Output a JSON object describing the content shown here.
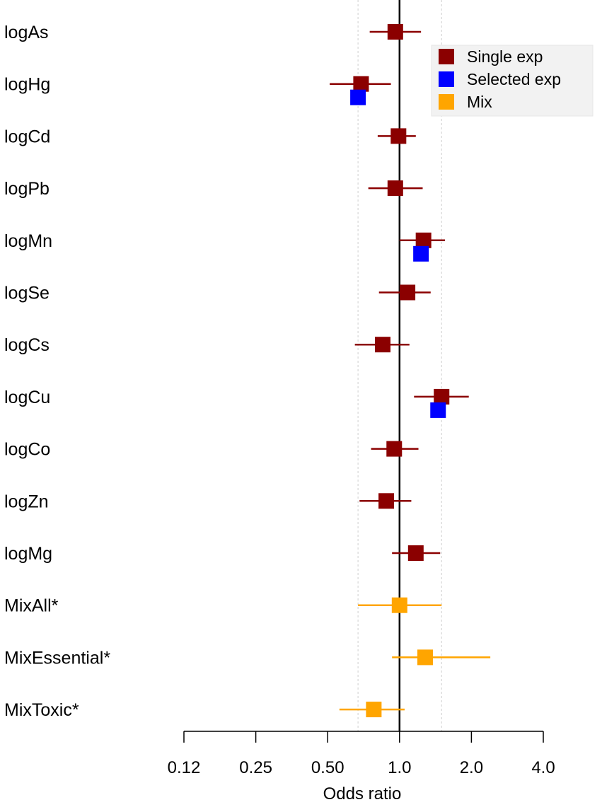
{
  "chart_data": {
    "type": "forest",
    "xlabel": "Odds ratio",
    "x_scale": "log2",
    "xlim": [
      0.125,
      4.0
    ],
    "ticks": [
      {
        "value": 0.125,
        "label": "0.12"
      },
      {
        "value": 0.25,
        "label": "0.25"
      },
      {
        "value": 0.5,
        "label": "0.50"
      },
      {
        "value": 1.0,
        "label": "1.0"
      },
      {
        "value": 2.0,
        "label": "2.0"
      },
      {
        "value": 4.0,
        "label": "4.0"
      }
    ],
    "reference_line": 1.0,
    "dashed_reference_lines": [
      0.67,
      1.5
    ],
    "legend": {
      "position": "top-right",
      "entries": [
        {
          "name": "Single exp",
          "color": "#8b0000"
        },
        {
          "name": "Selected exp",
          "color": "#0000ff"
        },
        {
          "name": "Mix",
          "color": "#ffa500"
        }
      ]
    },
    "rows": [
      {
        "label": "logAs",
        "estimates": [
          {
            "series": "Single exp",
            "or": 0.96,
            "lo": 0.75,
            "hi": 1.23
          }
        ]
      },
      {
        "label": "logHg",
        "estimates": [
          {
            "series": "Single exp",
            "or": 0.69,
            "lo": 0.51,
            "hi": 0.92
          },
          {
            "series": "Selected exp",
            "or": 0.67
          }
        ]
      },
      {
        "label": "logCd",
        "estimates": [
          {
            "series": "Single exp",
            "or": 0.99,
            "lo": 0.81,
            "hi": 1.17
          }
        ]
      },
      {
        "label": "logPb",
        "estimates": [
          {
            "series": "Single exp",
            "or": 0.96,
            "lo": 0.74,
            "hi": 1.25
          }
        ]
      },
      {
        "label": "logMn",
        "estimates": [
          {
            "series": "Single exp",
            "or": 1.26,
            "lo": 1.0,
            "hi": 1.55
          },
          {
            "series": "Selected exp",
            "or": 1.23
          }
        ]
      },
      {
        "label": "logSe",
        "estimates": [
          {
            "series": "Single exp",
            "or": 1.08,
            "lo": 0.82,
            "hi": 1.35
          }
        ]
      },
      {
        "label": "logCs",
        "estimates": [
          {
            "series": "Single exp",
            "or": 0.85,
            "lo": 0.65,
            "hi": 1.1
          }
        ]
      },
      {
        "label": "logCu",
        "estimates": [
          {
            "series": "Single exp",
            "or": 1.5,
            "lo": 1.15,
            "hi": 1.95
          },
          {
            "series": "Selected exp",
            "or": 1.45
          }
        ]
      },
      {
        "label": "logCo",
        "estimates": [
          {
            "series": "Single exp",
            "or": 0.95,
            "lo": 0.76,
            "hi": 1.2
          }
        ]
      },
      {
        "label": "logZn",
        "estimates": [
          {
            "series": "Single exp",
            "or": 0.88,
            "lo": 0.68,
            "hi": 1.12
          }
        ]
      },
      {
        "label": "logMg",
        "estimates": [
          {
            "series": "Single exp",
            "or": 1.17,
            "lo": 0.93,
            "hi": 1.48
          }
        ]
      },
      {
        "label": "MixAll*",
        "estimates": [
          {
            "series": "Mix",
            "or": 1.0,
            "lo": 0.67,
            "hi": 1.5
          }
        ]
      },
      {
        "label": "MixEssential*",
        "estimates": [
          {
            "series": "Mix",
            "or": 1.28,
            "lo": 0.93,
            "hi": 2.4
          }
        ]
      },
      {
        "label": "MixToxic*",
        "estimates": [
          {
            "series": "Mix",
            "or": 0.78,
            "lo": 0.56,
            "hi": 1.05
          }
        ]
      }
    ]
  }
}
